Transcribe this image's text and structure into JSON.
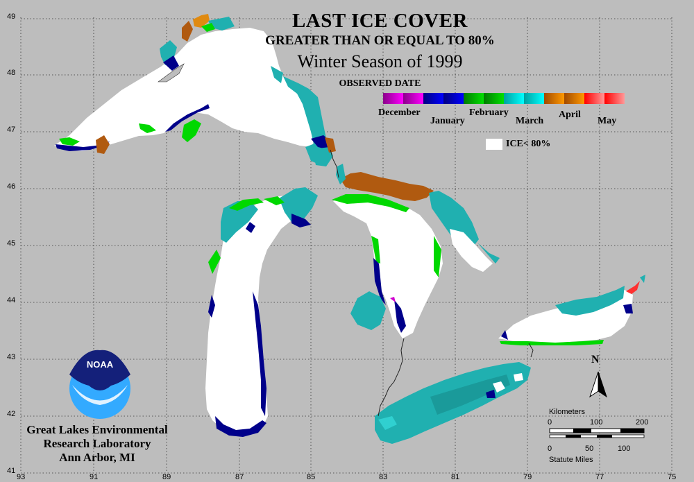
{
  "title": {
    "line1": "LAST ICE COVER",
    "line2": "GREATER THAN OR EQUAL TO 80%",
    "line3": "Winter Season of 1999"
  },
  "legend": {
    "heading": "OBSERVED DATE",
    "months": [
      {
        "label": "December",
        "colors": [
          "#8a008a",
          "#ff00ff"
        ]
      },
      {
        "label": "January",
        "colors": [
          "#000080",
          "#0000ff"
        ]
      },
      {
        "label": "February",
        "colors": [
          "#007a00",
          "#00e000"
        ]
      },
      {
        "label": "March",
        "colors": [
          "#00a0a0",
          "#00ffff"
        ]
      },
      {
        "label": "April",
        "colors": [
          "#a04a00",
          "#ff9900"
        ]
      },
      {
        "label": "May",
        "colors": [
          "#ff0000",
          "#ff9999"
        ]
      }
    ],
    "ice_label": "ICE< 80%",
    "ice_color": "#ffffff"
  },
  "axes": {
    "longitudes": [
      "93",
      "91",
      "89",
      "87",
      "85",
      "83",
      "81",
      "79",
      "77",
      "75"
    ],
    "latitudes": [
      "49",
      "48",
      "47",
      "46",
      "45",
      "44",
      "43",
      "42",
      "41"
    ]
  },
  "colors": {
    "background": "#bdbdbd",
    "grid": "#333333",
    "ice": "#ffffff",
    "march": "#20b0b0",
    "march_dark": "#1a9a9a",
    "january": "#00008a",
    "february": "#00d800",
    "april": "#b05a10",
    "april_light": "#e08a10",
    "march_light": "#30d0d0"
  },
  "north_label": "N",
  "scale_bar": {
    "km_label": "Kilometers",
    "km_ticks": [
      "0",
      "100",
      "200"
    ],
    "mi_ticks": [
      "0",
      "50",
      "100"
    ],
    "mi_label": "Statute Miles"
  },
  "credit": {
    "logo_text": "NOAA",
    "line1": "Great Lakes Environmental",
    "line2": "Research Laboratory",
    "line3": "Ann Arbor, MI"
  }
}
